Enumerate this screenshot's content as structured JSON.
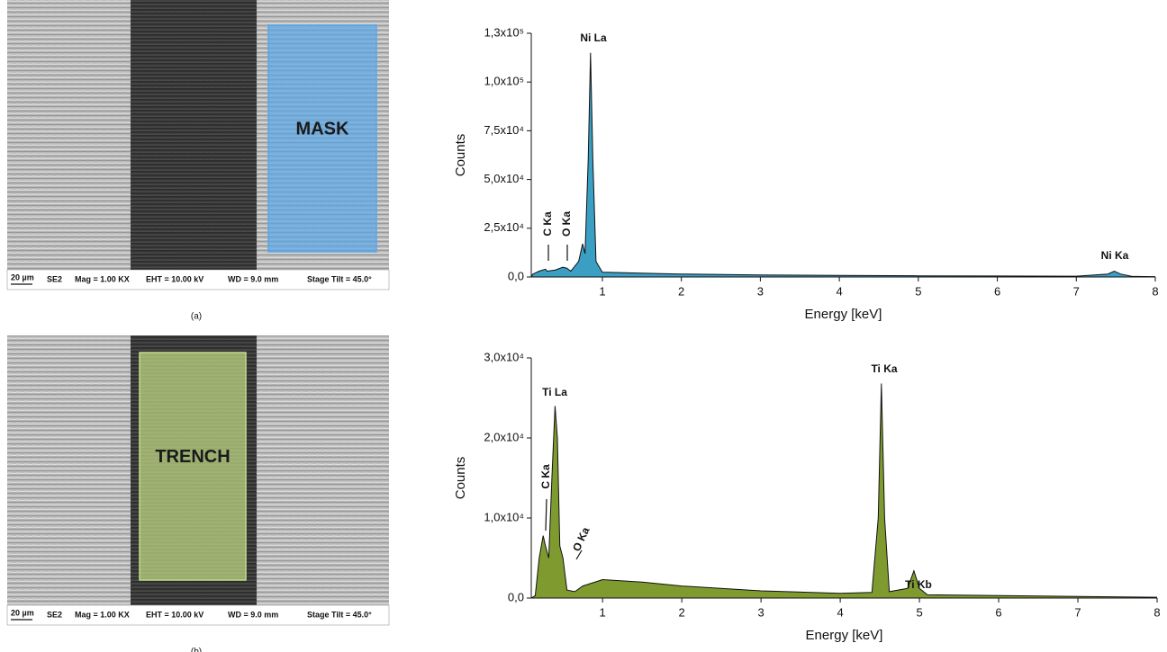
{
  "panels": [
    {
      "overlay": "MASK",
      "overlay_color": "#5aa6e6",
      "caption": "(a)",
      "scale": "20 µm",
      "info": [
        "SE2",
        "Mag = 1.00 KX",
        "EHT = 10.00 kV",
        "WD = 9.0 mm",
        "Stage Tilt = 45.0°"
      ]
    },
    {
      "overlay": "TRENCH",
      "overlay_color": "#c2dc86",
      "caption": "(b)",
      "scale": "20 µm",
      "info": [
        "SE2",
        "Mag = 1.00 KX",
        "EHT = 10.00 kV",
        "WD = 9.0 mm",
        "Stage Tilt = 45.0°"
      ]
    }
  ],
  "chart_data": [
    {
      "type": "area",
      "color": "#3b9fc4",
      "x_label": "Energy [keV]",
      "y_label": "Counts",
      "xlim": [
        0.1,
        8
      ],
      "xticks": [
        1,
        2,
        3,
        4,
        5,
        6,
        7,
        8
      ],
      "ylim": [
        0,
        125000
      ],
      "yticks": [
        {
          "value": 0,
          "label": "0,0"
        },
        {
          "value": 25000,
          "label": "2,5x10⁴"
        },
        {
          "value": 50000,
          "label": "5,0x10⁴"
        },
        {
          "value": 75000,
          "label": "7,5x10⁴"
        },
        {
          "value": 100000,
          "label": "1,0x10⁵"
        },
        {
          "value": 125000,
          "label": "1,3x10⁵"
        }
      ],
      "x": [
        0.1,
        0.12,
        0.2,
        0.28,
        0.3,
        0.4,
        0.5,
        0.55,
        0.6,
        0.7,
        0.75,
        0.78,
        0.82,
        0.85,
        0.88,
        0.92,
        1.0,
        1.5,
        2,
        3,
        4,
        5,
        6,
        7,
        7.4,
        7.48,
        7.56,
        7.7,
        8
      ],
      "values": [
        0,
        1500,
        3000,
        4000,
        3000,
        3500,
        5000,
        4500,
        3000,
        8000,
        17000,
        12000,
        60000,
        115000,
        60000,
        8000,
        2500,
        2000,
        1500,
        1000,
        800,
        600,
        500,
        400,
        1500,
        3000,
        1500,
        300,
        200
      ],
      "annotations": [
        {
          "text": "C Ka",
          "x": 0.28
        },
        {
          "text": "O Ka",
          "x": 0.55
        },
        {
          "text": "Ni La",
          "x": 0.85
        },
        {
          "text": "Ni Ka",
          "x": 7.48
        }
      ]
    },
    {
      "type": "area",
      "color": "#7f9b30",
      "x_label": "Energy [keV]",
      "y_label": "Counts",
      "xlim": [
        0.1,
        8
      ],
      "xticks": [
        1,
        2,
        3,
        4,
        5,
        6,
        7,
        8
      ],
      "ylim": [
        0,
        30000
      ],
      "yticks": [
        {
          "value": 0,
          "label": "0,0"
        },
        {
          "value": 10000,
          "label": "1,0x10⁴"
        },
        {
          "value": 20000,
          "label": "2,0x10⁴"
        },
        {
          "value": 30000,
          "label": "3,0x10⁴"
        }
      ],
      "x": [
        0.1,
        0.15,
        0.2,
        0.25,
        0.28,
        0.32,
        0.36,
        0.4,
        0.43,
        0.46,
        0.5,
        0.55,
        0.65,
        0.75,
        1.0,
        1.5,
        2,
        3,
        4,
        4.4,
        4.48,
        4.52,
        4.56,
        4.62,
        4.85,
        4.93,
        5.0,
        5.1,
        6,
        7,
        8
      ],
      "values": [
        0,
        300,
        5000,
        7800,
        6500,
        5000,
        15000,
        24000,
        20000,
        6500,
        5000,
        1000,
        800,
        1500,
        2300,
        2000,
        1500,
        900,
        600,
        700,
        10000,
        26800,
        10000,
        800,
        1200,
        3400,
        1200,
        400,
        300,
        200,
        100
      ],
      "annotations": [
        {
          "text": "Ti La",
          "x": 0.4
        },
        {
          "text": "C Ka",
          "x": 0.25
        },
        {
          "text": "O Ka",
          "x": 0.5
        },
        {
          "text": "Ti Ka",
          "x": 4.52
        },
        {
          "text": "Ti Kb",
          "x": 4.93
        }
      ]
    }
  ]
}
